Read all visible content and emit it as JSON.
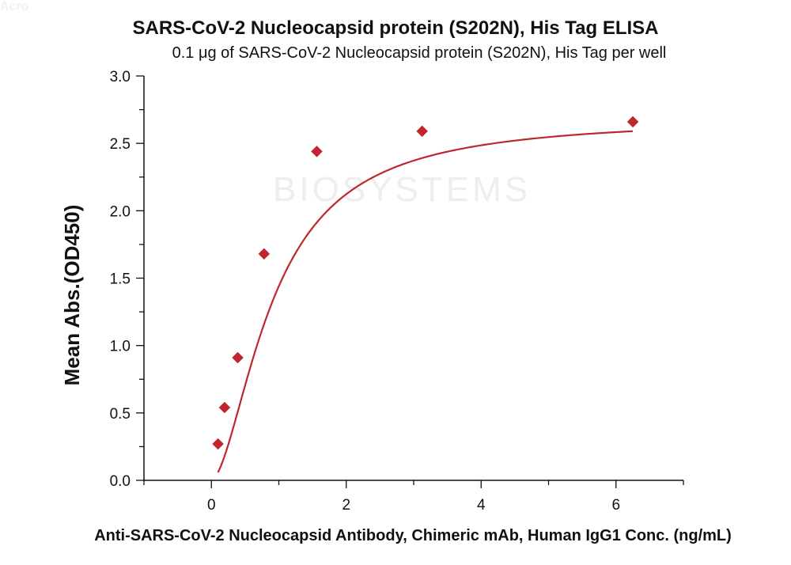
{
  "watermark": {
    "brand": "Acro",
    "subtext": "BIOSYSTEMS"
  },
  "colors": {
    "series": "#c0272d",
    "axis": "#111111"
  },
  "chart_data": {
    "type": "scatter",
    "title": "SARS-CoV-2 Nucleocapsid protein (S202N), His Tag ELISA",
    "subtitle": "0.1 μg of SARS-CoV-2 Nucleocapsid protein (S202N), His Tag per well",
    "xlabel": "Anti-SARS-CoV-2 Nucleocapsid Antibody, Chimeric mAb, Human IgG1 Conc. (ng/mL)",
    "ylabel": "Mean Abs.(OD450)",
    "xlim": [
      -1,
      7
    ],
    "ylim": [
      0,
      3
    ],
    "x_ticks": [
      "0",
      "2",
      "4",
      "6"
    ],
    "y_ticks": [
      "0.0",
      "0.5",
      "1.0",
      "1.5",
      "2.0",
      "2.5",
      "3.0"
    ],
    "grid": false,
    "series": [
      {
        "x": [
          0.098,
          0.195,
          0.391,
          0.781,
          1.563,
          3.125,
          6.25
        ],
        "y": [
          0.27,
          0.54,
          0.91,
          1.68,
          2.44,
          2.59,
          2.66
        ],
        "fit": "sigmoidal curve"
      }
    ]
  }
}
